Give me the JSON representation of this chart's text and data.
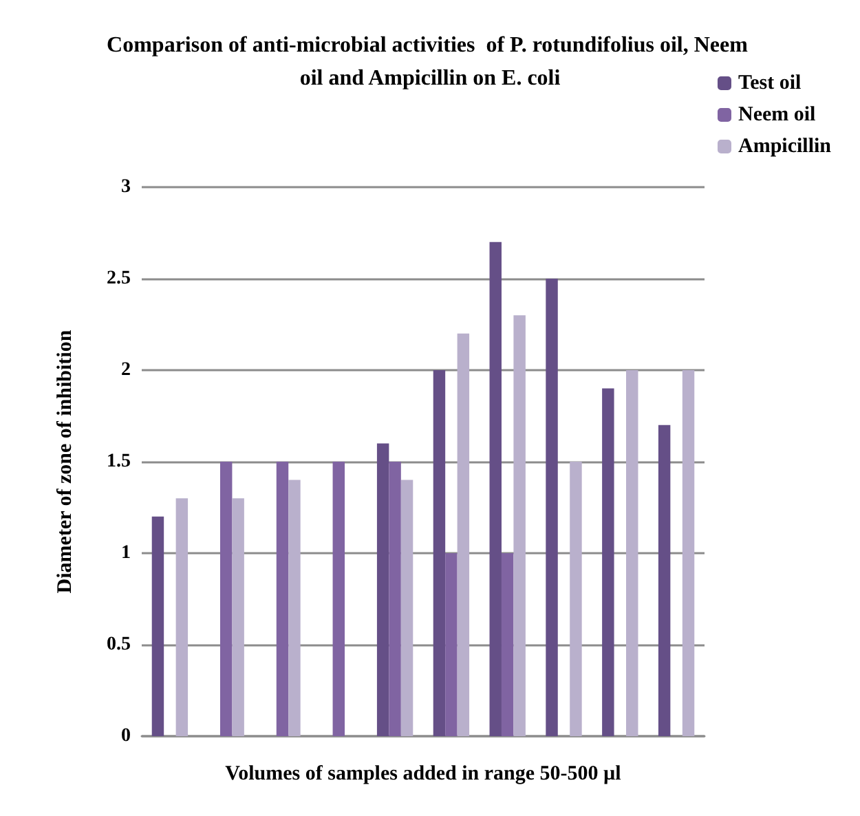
{
  "chart_data": {
    "type": "bar",
    "title": "Comparison of anti-microbial activities  of P. rotundifolius oil, Neem oil and Ampicillin on E. coli",
    "xlabel": "Volumes of samples added in range 50-500 µl",
    "ylabel": "Diameter of zone of inhibition",
    "categories": [
      null,
      null,
      null,
      null,
      null,
      null,
      null,
      null,
      null,
      null
    ],
    "series": [
      {
        "name": "Test oil",
        "color": "#654f87",
        "values": [
          1.2,
          null,
          null,
          null,
          1.6,
          2.0,
          2.7,
          2.5,
          1.9,
          1.7
        ]
      },
      {
        "name": "Neem oil",
        "color": "#8064a2",
        "values": [
          null,
          1.5,
          1.5,
          1.5,
          1.5,
          1.0,
          1.0,
          null,
          null,
          null
        ]
      },
      {
        "name": "Ampicillin",
        "color": "#b9b0cc",
        "values": [
          1.3,
          1.3,
          1.4,
          null,
          1.4,
          2.2,
          2.3,
          1.5,
          2.0,
          2.0
        ]
      }
    ],
    "ylim": [
      0,
      3
    ],
    "yticks": [
      0,
      0.5,
      1,
      1.5,
      2,
      2.5,
      3
    ],
    "grid": "y",
    "legend": "top right"
  }
}
